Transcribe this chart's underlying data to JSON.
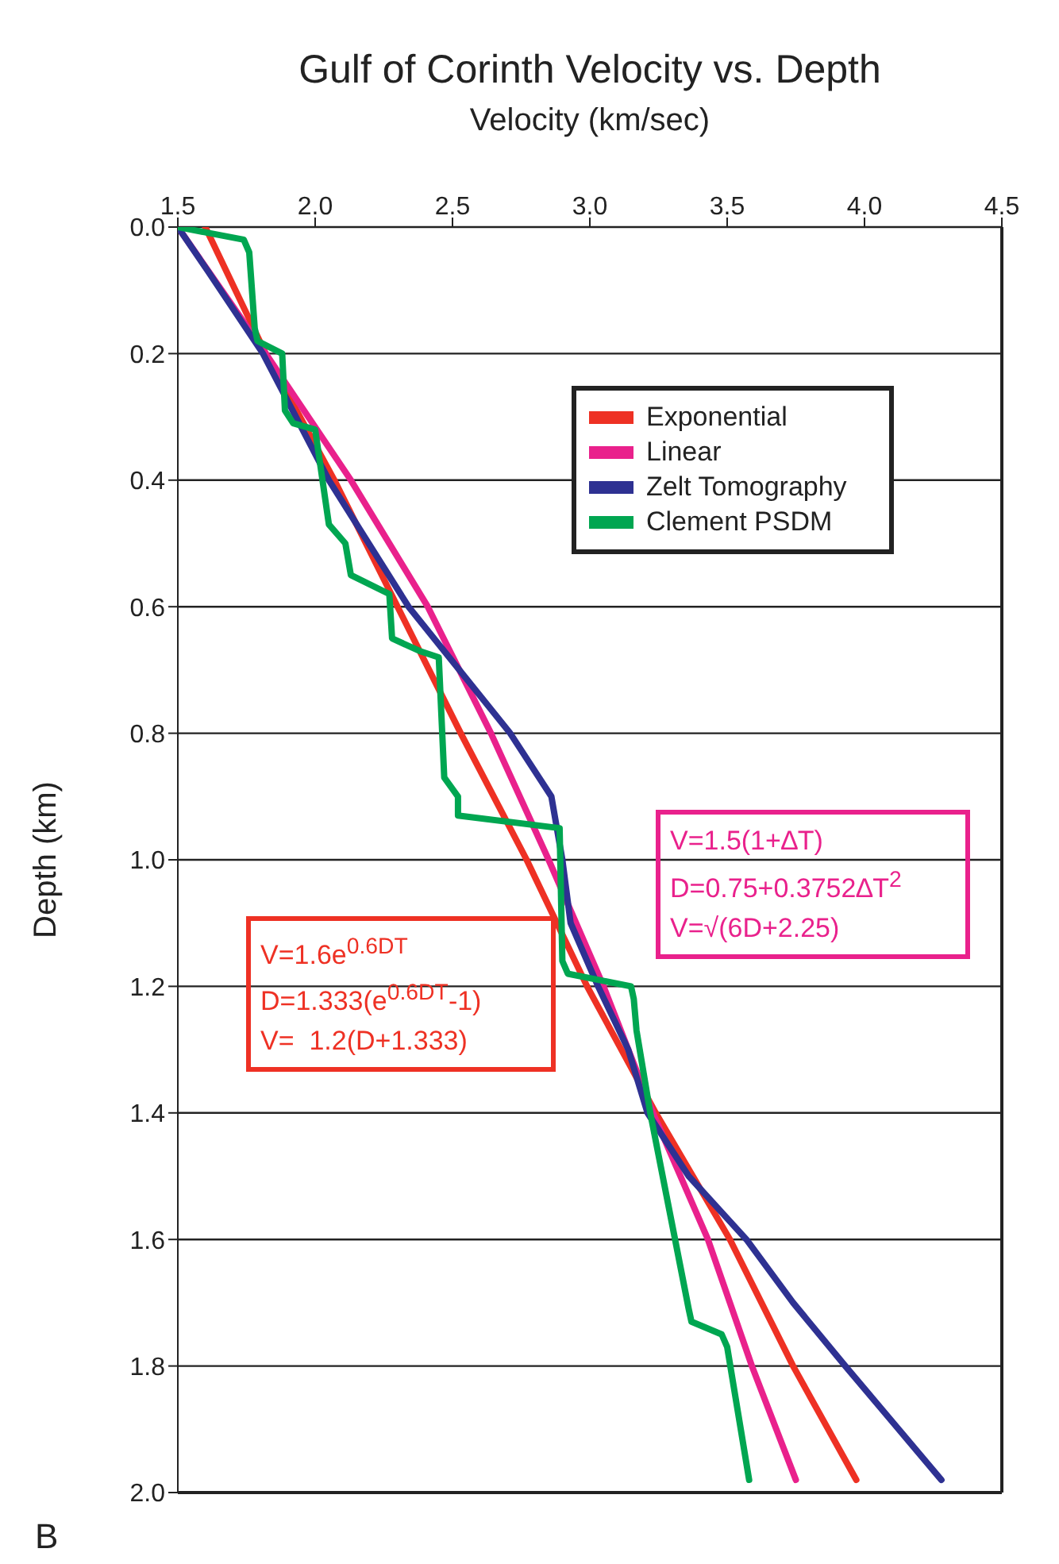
{
  "chart_data": {
    "type": "line",
    "title": "Gulf of Corinth Velocity vs. Depth",
    "xlabel": "Velocity (km/sec)",
    "ylabel": "Depth (km)",
    "xlim": [
      1.5,
      4.5
    ],
    "xticks": [
      1.5,
      {
        "value": 2,
        "label": "2.0"
      },
      2.5,
      {
        "value": 3,
        "label": "3.0"
      },
      3.5,
      {
        "value": 4,
        "label": "4.0"
      },
      4.5
    ],
    "ylim": [
      2.0,
      0.0
    ],
    "yticks": [
      {
        "value": 0,
        "label": "0.0"
      },
      0.2,
      0.4,
      0.6,
      0.8,
      {
        "value": 1,
        "label": "1.0"
      },
      1.2,
      1.4,
      1.6,
      1.8,
      {
        "value": 2,
        "label": "2.0"
      }
    ],
    "grid": "y",
    "legend": "top right",
    "marker": "none",
    "line_style": "solid",
    "series": [
      {
        "name": "Exponential",
        "color": "#ee3124",
        "x": [
          1.6,
          1.82,
          2.07,
          2.3,
          2.53,
          2.77,
          2.99,
          3.24,
          3.51,
          3.74,
          3.97
        ],
        "values": [
          0,
          0.2,
          0.4,
          0.6,
          0.8,
          1.0,
          1.2,
          1.4,
          1.6,
          1.8,
          1.98
        ]
      },
      {
        "name": "Linear",
        "color": "#e9218c",
        "x": [
          1.5,
          1.82,
          2.13,
          2.41,
          2.64,
          2.85,
          3.05,
          3.23,
          3.43,
          3.59,
          3.75
        ],
        "values": [
          0,
          0.2,
          0.4,
          0.6,
          0.8,
          1.0,
          1.2,
          1.4,
          1.6,
          1.8,
          1.98
        ]
      },
      {
        "name": "Zelt Tomography",
        "color": "#2e3192",
        "x": [
          1.5,
          1.61,
          1.81,
          2.05,
          2.34,
          2.71,
          2.86,
          2.9,
          2.93,
          3.03,
          3.14,
          3.21,
          3.36,
          3.57,
          3.74,
          3.93,
          4.28
        ],
        "values": [
          0,
          0.07,
          0.2,
          0.4,
          0.6,
          0.8,
          0.9,
          1.0,
          1.1,
          1.2,
          1.3,
          1.4,
          1.5,
          1.6,
          1.7,
          1.8,
          1.98
        ]
      },
      {
        "name": "Clement PSDM",
        "color": "#00a651",
        "x": [
          1.5,
          1.74,
          1.76,
          1.78,
          1.79,
          1.88,
          1.89,
          1.92,
          2.0,
          2.05,
          2.11,
          2.13,
          2.27,
          2.28,
          2.38,
          2.45,
          2.47,
          2.52,
          2.52,
          2.89,
          2.9,
          2.92,
          3.15,
          3.16,
          3.17,
          3.22,
          3.36,
          3.37,
          3.48,
          3.5,
          3.58
        ],
        "values": [
          0,
          0.02,
          0.04,
          0.16,
          0.18,
          0.2,
          0.29,
          0.31,
          0.32,
          0.47,
          0.5,
          0.55,
          0.58,
          0.65,
          0.67,
          0.68,
          0.87,
          0.9,
          0.93,
          0.95,
          1.16,
          1.18,
          1.2,
          1.22,
          1.27,
          1.4,
          1.71,
          1.73,
          1.75,
          1.77,
          1.98
        ]
      }
    ],
    "annotations": [
      "V=1.6e$^{0.6DT}$\nD=1.333(e$^{0.6DT}$-1)\nV=  1.2(D+1.333)",
      "V=1.5(1+∆T)\nD=0.75+0.3752∆T$^{2}$\nV=√(6D+2.25)",
      "B"
    ]
  }
}
